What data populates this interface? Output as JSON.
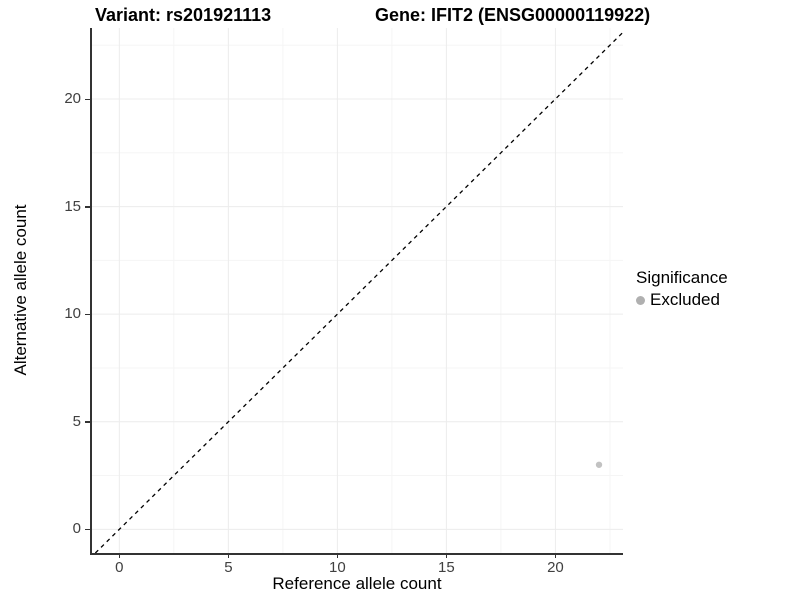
{
  "titles": {
    "variant": "Variant: rs201921113",
    "gene": "Gene: IFIT2 (ENSG00000119922)"
  },
  "legend": {
    "title": "Significance",
    "items": [
      {
        "label": "Excluded",
        "color": "#b0b0b0"
      }
    ]
  },
  "colors": {
    "axis_line": "#333333",
    "tick_mark": "#333333",
    "tick_label": "#404040",
    "grid_major": "#ececec",
    "grid_minor": "#f5f5f5",
    "identity_line": "#000000",
    "point_excluded": "#c2c2c2",
    "background": "#ffffff"
  },
  "chart_data": {
    "type": "scatter",
    "title": "Variant: rs201921113   Gene: IFIT2 (ENSG00000119922)",
    "xlabel": "Reference allele count",
    "ylabel": "Alternative allele count",
    "xlim": [
      -1.3,
      23.1
    ],
    "ylim": [
      -1.1,
      23.3
    ],
    "x_ticks": [
      0,
      5,
      10,
      15,
      20
    ],
    "y_ticks": [
      0,
      5,
      10,
      15,
      20
    ],
    "grid": true,
    "legend_position": "right",
    "reference_line": {
      "type": "identity",
      "style": "dashed",
      "color": "#000000"
    },
    "series": [
      {
        "name": "Excluded",
        "color": "#c2c2c2",
        "points": [
          {
            "x": 22,
            "y": 3
          }
        ]
      }
    ]
  }
}
